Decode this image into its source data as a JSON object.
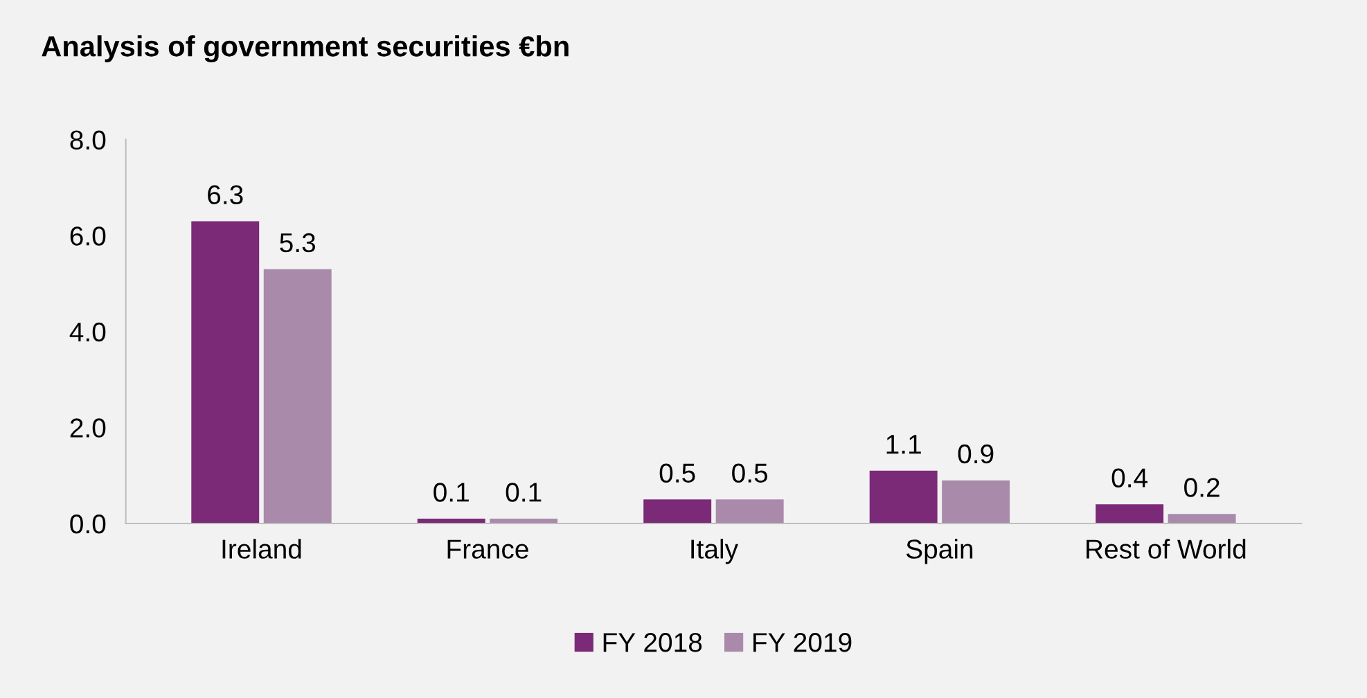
{
  "chart_data": {
    "type": "bar",
    "title": "Analysis of government securities €bn",
    "categories": [
      "Ireland",
      "France",
      "Italy",
      "Spain",
      "Rest of World"
    ],
    "series": [
      {
        "name": "FY 2018",
        "color": "#7b2a77",
        "values": [
          6.3,
          0.1,
          0.5,
          1.1,
          0.4
        ]
      },
      {
        "name": "FY 2019",
        "color": "#a98aab",
        "values": [
          5.3,
          0.1,
          0.5,
          0.9,
          0.2
        ]
      }
    ],
    "ylim": [
      0,
      8
    ],
    "yticks": [
      {
        "value": 0,
        "label": "0.0"
      },
      {
        "value": 2,
        "label": "2.0"
      },
      {
        "value": 4,
        "label": "4.0"
      },
      {
        "value": 6,
        "label": "6.0"
      },
      {
        "value": 8,
        "label": "8.0"
      }
    ],
    "data_labels": true,
    "legend": "bottom",
    "grid": false
  }
}
